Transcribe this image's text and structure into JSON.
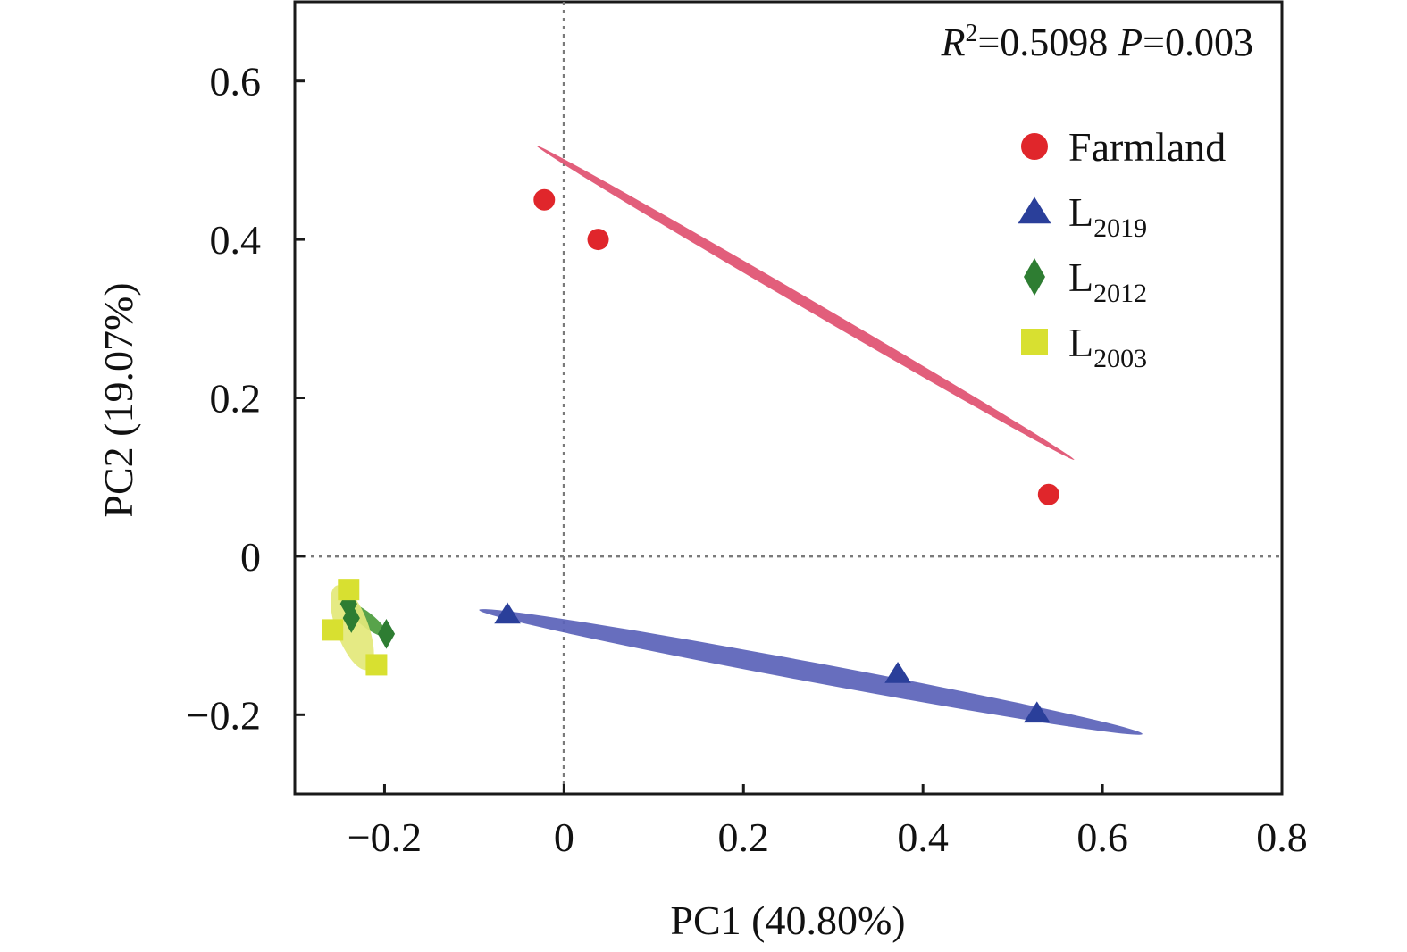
{
  "chart_data": {
    "type": "scatter",
    "title": "",
    "xlabel": "PC1 (40.80%)",
    "ylabel": "PC2 (19.07%)",
    "xlim": [
      -0.3,
      0.8
    ],
    "ylim": [
      -0.3,
      0.7
    ],
    "x_ticks": [
      {
        "value": -0.2,
        "label": "−0.2"
      },
      {
        "value": 0,
        "label": "0"
      },
      {
        "value": 0.2,
        "label": "0.2"
      },
      {
        "value": 0.4,
        "label": "0.4"
      },
      {
        "value": 0.6,
        "label": "0.6"
      },
      {
        "value": 0.8,
        "label": "0.8"
      }
    ],
    "y_ticks": [
      {
        "value": -0.2,
        "label": "−0.2"
      },
      {
        "value": 0,
        "label": "0"
      },
      {
        "value": 0.2,
        "label": "0.2"
      },
      {
        "value": 0.4,
        "label": "0.4"
      },
      {
        "value": 0.6,
        "label": "0.6"
      }
    ],
    "reference_lines": {
      "x": 0,
      "y": 0,
      "style": "dotted"
    },
    "grid": false,
    "legend_position": "top-right",
    "annotation": {
      "r2_symbol": "R",
      "r2_power": "2",
      "r2_value": "=0.5098",
      "p_symbol": "P",
      "p_value": "=0.003"
    },
    "series": [
      {
        "name": "Farmland",
        "legend_main": "Farmland",
        "legend_sub": "",
        "marker": "circle",
        "color": "#e0262b",
        "ellipse_color": "#e05070",
        "points": [
          [
            -0.022,
            0.45
          ],
          [
            0.038,
            0.4
          ],
          [
            0.54,
            0.078
          ]
        ],
        "ellipse": {
          "center": [
            0.269,
            0.32
          ],
          "semi_major_data": 0.347,
          "semi_minor_data": 0.006
        }
      },
      {
        "name": "L2019",
        "legend_main": "L",
        "legend_sub": "2019",
        "marker": "triangle",
        "color": "#2a3f9a",
        "ellipse_color": "#5a62b8",
        "points": [
          [
            -0.063,
            -0.073
          ],
          [
            0.372,
            -0.148
          ],
          [
            0.527,
            -0.198
          ]
        ],
        "ellipse": {
          "center": [
            0.275,
            -0.146
          ],
          "semi_major_data": 0.376,
          "semi_minor_data": 0.011
        }
      },
      {
        "name": "L2012",
        "legend_main": "L",
        "legend_sub": "2012",
        "marker": "diamond",
        "color": "#2e7d32",
        "ellipse_color": "#4a9b3c",
        "points": [
          [
            -0.24,
            -0.06
          ],
          [
            -0.237,
            -0.078
          ],
          [
            -0.198,
            -0.098
          ]
        ],
        "ellipse": {
          "center": [
            -0.22,
            -0.08
          ],
          "semi_major_data": 0.028,
          "semi_minor_data": 0.008
        }
      },
      {
        "name": "L2003",
        "legend_main": "L",
        "legend_sub": "2003",
        "marker": "square",
        "color": "#d8e030",
        "ellipse_color": "#e3e87a",
        "points": [
          [
            -0.24,
            -0.042
          ],
          [
            -0.258,
            -0.093
          ],
          [
            -0.209,
            -0.137
          ]
        ],
        "ellipse": {
          "center": [
            -0.236,
            -0.09
          ],
          "semi_major_data": 0.05,
          "semi_minor_data": 0.018
        }
      }
    ]
  }
}
